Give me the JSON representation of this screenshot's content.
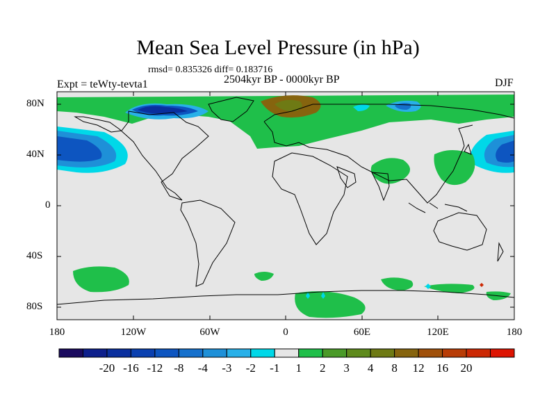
{
  "header": {
    "title": "Mean Sea Level Pressure (in hPa)",
    "stats": "rmsd= 0.835326 diff= 0.183716",
    "period": "2504kyr BP - 0000kyr BP",
    "experiment": "Expt = teWty-tevta1",
    "season": "DJF"
  },
  "axes": {
    "y_ticks": [
      "80N",
      "40N",
      "0",
      "40S",
      "80S"
    ],
    "x_ticks": [
      "180",
      "120W",
      "60W",
      "0",
      "60E",
      "120E",
      "180"
    ]
  },
  "colorbar": {
    "colors": [
      "#1a0a5e",
      "#0d1f8c",
      "#0a2f9e",
      "#0a40b0",
      "#0d55c0",
      "#1570cc",
      "#1e90d8",
      "#28b0e8",
      "#00d8e8",
      "#e6e6e6",
      "#1fbf4a",
      "#4a9a28",
      "#5e8a1c",
      "#6e7a14",
      "#86640e",
      "#a0500a",
      "#b83c06",
      "#cc2804",
      "#dd1402"
    ],
    "labels": [
      "-20",
      "-16",
      "-12",
      "-8",
      "-4",
      "-3",
      "-2",
      "-1",
      "1",
      "2",
      "3",
      "4",
      "8",
      "12",
      "16",
      "20"
    ]
  },
  "map": {
    "background_color": "#e6e6e6",
    "lon_range": [
      -180,
      180
    ],
    "lat_range": [
      -90,
      90
    ]
  }
}
